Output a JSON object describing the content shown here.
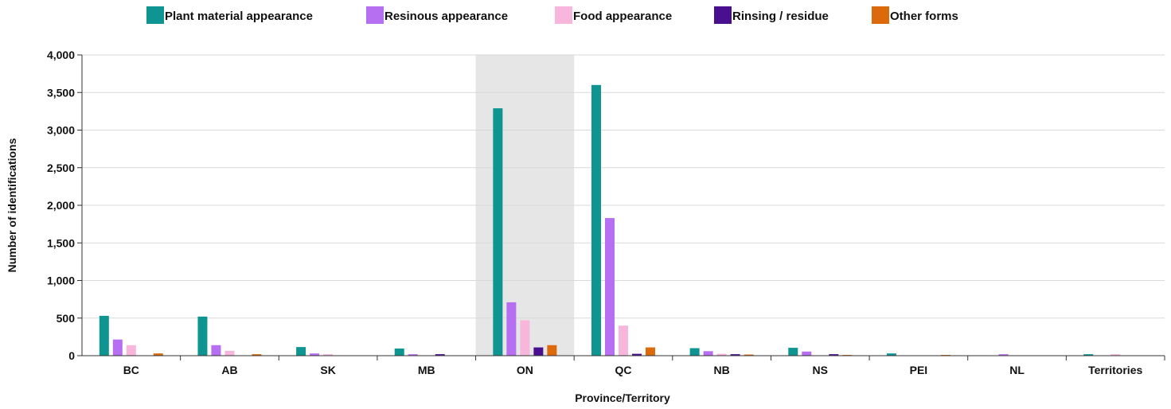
{
  "chart_data": {
    "type": "bar",
    "xlabel": "Province/Territory",
    "ylabel": "Number of identifications",
    "ylim": [
      0,
      4000
    ],
    "yticks": [
      0,
      500,
      1000,
      1500,
      2000,
      2500,
      3000,
      3500,
      4000
    ],
    "ytick_labels": [
      "0",
      "500",
      "1,000",
      "1,500",
      "2,000",
      "2,500",
      "3,000",
      "3,500",
      "4,000"
    ],
    "grid": true,
    "legend_position": "top",
    "highlighted_category": "ON",
    "highlight_color": "#e6e6e6",
    "categories": [
      "BC",
      "AB",
      "SK",
      "MB",
      "ON",
      "QC",
      "NB",
      "NS",
      "PEI",
      "NL",
      "Territories"
    ],
    "series": [
      {
        "name": "Plant material appearance",
        "color": "#0f9591",
        "values": [
          530,
          520,
          115,
          95,
          3290,
          3600,
          100,
          105,
          30,
          0,
          20
        ]
      },
      {
        "name": "Resinous appearance",
        "color": "#b76ff2",
        "values": [
          215,
          140,
          30,
          20,
          710,
          1830,
          60,
          55,
          0,
          20,
          0
        ]
      },
      {
        "name": "Food appearance",
        "color": "#f8b6dc",
        "values": [
          140,
          65,
          20,
          0,
          470,
          400,
          25,
          0,
          0,
          0,
          20
        ]
      },
      {
        "name": "Rinsing / residue",
        "color": "#4a0f8f",
        "values": [
          0,
          0,
          0,
          20,
          110,
          25,
          20,
          20,
          0,
          0,
          0
        ]
      },
      {
        "name": "Other forms",
        "color": "#dc6a0b",
        "values": [
          30,
          20,
          0,
          0,
          140,
          110,
          15,
          10,
          10,
          0,
          0
        ]
      }
    ]
  }
}
